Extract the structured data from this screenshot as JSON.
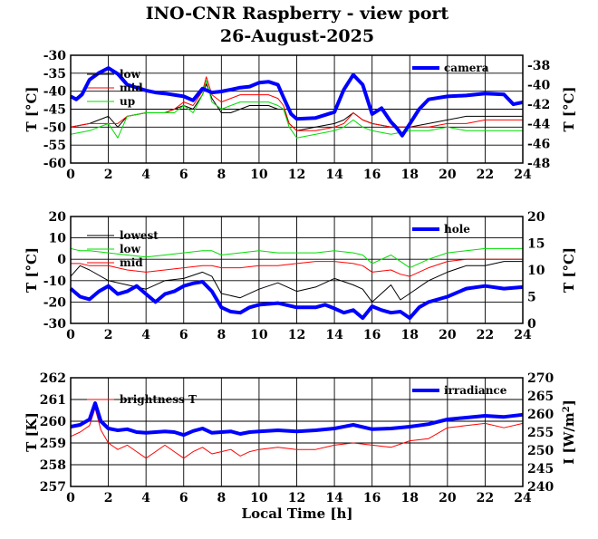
{
  "title": "INO-CNR Raspberry - view port",
  "subtitle": "26-August-2025",
  "xlabel": "Local Time [h]",
  "colors": {
    "black": "#000000",
    "red": "#ff0000",
    "green": "#00dd00",
    "blue": "#0000ff"
  },
  "chart_data": [
    {
      "type": "line",
      "xlim": [
        0,
        24
      ],
      "xticks": [
        0,
        2,
        4,
        6,
        8,
        10,
        12,
        14,
        16,
        18,
        20,
        22,
        24
      ],
      "ylabel": "T [°C]",
      "ylim": [
        -60,
        -30
      ],
      "yticks": [
        -60,
        -55,
        -50,
        -45,
        -40,
        -35,
        -30
      ],
      "y2label": "T [°C]",
      "y2lim": [
        -48,
        -37
      ],
      "y2ticks": [
        -48,
        -46,
        -44,
        -42,
        -40,
        -38
      ],
      "grid": true,
      "series": [
        {
          "name": "low",
          "axis": "left",
          "color": "#000000",
          "x": [
            0,
            1,
            1.5,
            2,
            2.5,
            3,
            4,
            5,
            5.5,
            6,
            6.5,
            7,
            7.2,
            7.5,
            8,
            8.5,
            9,
            9.5,
            10,
            10.5,
            11,
            11.3,
            11.6,
            12,
            13,
            14,
            14.5,
            15,
            15.5,
            16,
            17,
            18,
            19,
            20,
            21,
            22,
            23,
            24
          ],
          "y": [
            -50,
            -49,
            -48,
            -47,
            -50,
            -47,
            -46,
            -46,
            -45,
            -44,
            -45,
            -41,
            -38,
            -42,
            -46,
            -46,
            -45,
            -44,
            -44,
            -44,
            -45,
            -45,
            -49,
            -51,
            -50,
            -49,
            -48,
            -46,
            -48,
            -49,
            -50,
            -50,
            -49,
            -48,
            -47,
            -47,
            -47,
            -47
          ]
        },
        {
          "name": "mid",
          "axis": "left",
          "color": "#ff0000",
          "x": [
            0,
            1,
            1.5,
            2,
            2.5,
            3,
            4,
            5,
            5.5,
            6,
            6.5,
            7,
            7.2,
            7.5,
            8,
            8.5,
            9,
            9.5,
            10,
            10.5,
            11,
            11.3,
            11.6,
            12,
            13,
            14,
            14.5,
            15,
            15.5,
            16,
            17,
            18,
            19,
            20,
            21,
            22,
            23,
            24
          ],
          "y": [
            -50,
            -49,
            -49,
            -49,
            -49,
            -47,
            -46,
            -46,
            -45,
            -43,
            -44,
            -40,
            -36,
            -41,
            -43,
            -42,
            -41,
            -41,
            -41,
            -41,
            -42,
            -44,
            -49,
            -51,
            -51,
            -50,
            -49,
            -46,
            -48,
            -49,
            -50,
            -50,
            -50,
            -49,
            -49,
            -48,
            -48,
            -48
          ]
        },
        {
          "name": "up",
          "axis": "left",
          "color": "#00dd00",
          "x": [
            0,
            1,
            1.5,
            2,
            2.5,
            3,
            4,
            5,
            5.5,
            6,
            6.5,
            7,
            7.2,
            7.5,
            8,
            8.5,
            9,
            9.5,
            10,
            10.5,
            11,
            11.3,
            11.6,
            12,
            13,
            14,
            14.5,
            15,
            15.5,
            16,
            17,
            18,
            19,
            20,
            21,
            22,
            23,
            24
          ],
          "y": [
            -52,
            -51,
            -50,
            -49,
            -53,
            -47,
            -46,
            -46,
            -46,
            -44,
            -46,
            -41,
            -37,
            -43,
            -45,
            -44,
            -43,
            -43,
            -43,
            -43,
            -44,
            -45,
            -50,
            -53,
            -52,
            -51,
            -50,
            -48,
            -50,
            -51,
            -52,
            -51,
            -51,
            -50,
            -51,
            -51,
            -51,
            -51
          ]
        },
        {
          "name": "camera",
          "axis": "right",
          "color": "#0000ff",
          "x": [
            0,
            0.3,
            0.6,
            1,
            1.5,
            2,
            2.5,
            3,
            4,
            4.5,
            5,
            6,
            6.5,
            7,
            7.5,
            8,
            8.5,
            9,
            9.5,
            10,
            10.5,
            11,
            11.3,
            11.7,
            12,
            13,
            14,
            14.5,
            15,
            15.5,
            16,
            16.5,
            17,
            17.3,
            17.6,
            18,
            18.5,
            19,
            20,
            21,
            22,
            23,
            23.5,
            24
          ],
          "y": [
            -41.2,
            -41.5,
            -41,
            -39.5,
            -38.8,
            -38.3,
            -38.9,
            -40,
            -40.6,
            -40.8,
            -40.9,
            -41.2,
            -41.6,
            -40.4,
            -40.8,
            -40.7,
            -40.5,
            -40.3,
            -40.2,
            -39.8,
            -39.7,
            -40,
            -41.3,
            -43,
            -43.5,
            -43.4,
            -42.8,
            -40.5,
            -39,
            -40,
            -43,
            -42.4,
            -43.8,
            -44.4,
            -45.2,
            -44,
            -42.5,
            -41.5,
            -41.2,
            -41.1,
            -40.9,
            -41,
            -42,
            -41.8
          ]
        }
      ],
      "legend": [
        {
          "label": "low",
          "placement": "left"
        },
        {
          "label": "mid",
          "placement": "left"
        },
        {
          "label": "up",
          "placement": "left"
        },
        {
          "label": "camera",
          "placement": "right"
        }
      ]
    },
    {
      "type": "line",
      "xlim": [
        0,
        24
      ],
      "xticks": [
        0,
        2,
        4,
        6,
        8,
        10,
        12,
        14,
        16,
        18,
        20,
        22,
        24
      ],
      "ylabel": "T [°C]",
      "ylim": [
        -30,
        20
      ],
      "yticks": [
        -30,
        -20,
        -10,
        0,
        10,
        20
      ],
      "y2label": "T [°C]",
      "y2lim": [
        0,
        20
      ],
      "y2ticks": [
        0,
        5,
        10,
        15,
        20
      ],
      "grid": true,
      "series": [
        {
          "name": "lowest",
          "axis": "left",
          "color": "#000000",
          "x": [
            0,
            0.5,
            1,
            2,
            3,
            4,
            5,
            6,
            7,
            7.5,
            8,
            9,
            10,
            11,
            12,
            13,
            14,
            15,
            15.5,
            16,
            17,
            17.5,
            18,
            19,
            20,
            21,
            22,
            23,
            24
          ],
          "y": [
            -8,
            -3,
            -5,
            -10,
            -12,
            -14,
            -10,
            -9,
            -6,
            -8,
            -16,
            -18,
            -14,
            -11,
            -15,
            -13,
            -9,
            -12,
            -14,
            -20,
            -12,
            -19,
            -16,
            -10,
            -6,
            -3,
            -3,
            -1,
            -1
          ]
        },
        {
          "name": "low",
          "axis": "left",
          "color": "#00dd00",
          "x": [
            0,
            0.5,
            1,
            2,
            3,
            4,
            5,
            6,
            7,
            7.5,
            8,
            9,
            10,
            11,
            12,
            13,
            14,
            15,
            15.5,
            16,
            17,
            17.5,
            18,
            19,
            20,
            21,
            22,
            23,
            24
          ],
          "y": [
            5,
            4,
            4,
            3,
            2,
            1,
            2,
            3,
            4,
            4,
            2,
            3,
            4,
            3,
            3,
            3,
            4,
            3,
            2,
            -2,
            2,
            -1,
            -4,
            0,
            3,
            4,
            5,
            5,
            5
          ]
        },
        {
          "name": "mid",
          "axis": "left",
          "color": "#ff0000",
          "x": [
            0,
            0.5,
            1,
            2,
            3,
            4,
            5,
            6,
            7,
            7.5,
            8,
            9,
            10,
            11,
            12,
            13,
            14,
            15,
            15.5,
            16,
            17,
            17.5,
            18,
            19,
            20,
            21,
            22,
            23,
            24
          ],
          "y": [
            -2,
            -2,
            -3,
            -3,
            -5,
            -6,
            -5,
            -4,
            -3,
            -3,
            -4,
            -4,
            -3,
            -3,
            -2,
            -1,
            -1,
            -2,
            -3,
            -6,
            -5,
            -7,
            -8,
            -4,
            -1,
            0,
            0,
            0,
            0
          ]
        },
        {
          "name": "hole",
          "axis": "right",
          "color": "#0000ff",
          "x": [
            0,
            0.5,
            1,
            1.5,
            2,
            2.5,
            3,
            3.5,
            4,
            4.5,
            5,
            5.5,
            6,
            6.5,
            7,
            7.5,
            8,
            8.5,
            9,
            9.5,
            10,
            11,
            12,
            13,
            13.5,
            14,
            14.5,
            15,
            15.5,
            16,
            16.5,
            17,
            17.5,
            18,
            18.5,
            19,
            20,
            21,
            22,
            23,
            24
          ],
          "y": [
            6.5,
            5,
            4.5,
            6,
            7,
            5.5,
            6,
            7,
            5.5,
            4,
            5.5,
            6,
            7,
            7.5,
            7.8,
            6,
            3,
            2.2,
            2,
            3,
            3.5,
            3.8,
            3,
            3,
            3.5,
            2.8,
            2,
            2.5,
            1,
            3.2,
            2.5,
            2,
            2.2,
            1,
            3,
            4,
            5,
            6.5,
            7,
            6.5,
            6.8
          ]
        }
      ],
      "legend": [
        {
          "label": "lowest",
          "placement": "left"
        },
        {
          "label": "low",
          "placement": "left"
        },
        {
          "label": "mid",
          "placement": "left"
        },
        {
          "label": "hole",
          "placement": "right"
        }
      ]
    },
    {
      "type": "line",
      "xlim": [
        0,
        24
      ],
      "xticks": [
        0,
        2,
        4,
        6,
        8,
        10,
        12,
        14,
        16,
        18,
        20,
        22,
        24
      ],
      "xlabel": "Local Time [h]",
      "ylabel": "T [K]",
      "ylim": [
        257,
        262
      ],
      "yticks": [
        257,
        258,
        259,
        260,
        261,
        262
      ],
      "y2label": "I [W/m2]",
      "y2lim": [
        240,
        270
      ],
      "y2ticks": [
        240,
        245,
        250,
        255,
        260,
        265,
        270
      ],
      "grid": true,
      "series": [
        {
          "name": "brightness T",
          "axis": "left",
          "color": "#ff0000",
          "x": [
            0,
            0.5,
            1,
            1.3,
            1.6,
            2,
            2.5,
            3,
            3.5,
            4,
            4.5,
            5,
            5.5,
            6,
            6.5,
            7,
            7.5,
            8,
            8.5,
            9,
            9.5,
            10,
            11,
            12,
            13,
            14,
            15,
            16,
            17,
            18,
            19,
            20,
            21,
            22,
            23,
            24
          ],
          "y": [
            259.3,
            259.5,
            259.8,
            260.6,
            259.6,
            259,
            258.7,
            258.9,
            258.6,
            258.3,
            258.6,
            258.9,
            258.6,
            258.3,
            258.6,
            258.8,
            258.5,
            258.6,
            258.7,
            258.4,
            258.6,
            258.7,
            258.8,
            258.7,
            258.7,
            258.9,
            259,
            258.9,
            258.8,
            259.1,
            259.2,
            259.7,
            259.8,
            259.9,
            259.7,
            259.9
          ]
        },
        {
          "name": "irradiance",
          "axis": "right",
          "color": "#0000ff",
          "x": [
            0,
            0.5,
            1,
            1.3,
            1.6,
            2,
            2.5,
            3,
            3.5,
            4,
            4.5,
            5,
            5.5,
            6,
            6.5,
            7,
            7.5,
            8,
            8.5,
            9,
            9.5,
            10,
            11,
            12,
            13,
            14,
            15,
            16,
            17,
            18,
            19,
            20,
            21,
            22,
            23,
            24
          ],
          "y": [
            256.5,
            257,
            258.5,
            263,
            258,
            256,
            255.5,
            255.8,
            255,
            254.8,
            255,
            255.2,
            255,
            254.2,
            255.3,
            256,
            254.8,
            255,
            255.2,
            254.5,
            255,
            255.2,
            255.5,
            255.2,
            255.5,
            256,
            257,
            255.8,
            256,
            256.5,
            257.2,
            258.5,
            259,
            259.5,
            259.2,
            259.8
          ]
        }
      ],
      "legend": [
        {
          "label": "brightness T",
          "placement": "left"
        },
        {
          "label": "irradiance",
          "placement": "right"
        }
      ]
    }
  ]
}
